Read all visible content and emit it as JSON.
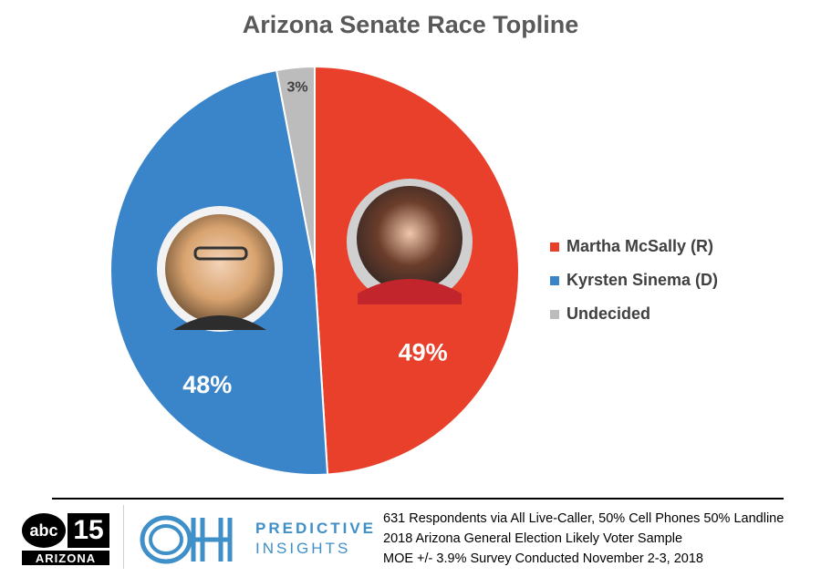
{
  "chart_data": {
    "type": "pie",
    "title": "Arizona Senate Race Topline",
    "slices": [
      {
        "label": "Martha McSally (R)",
        "value": 49,
        "display": "49%",
        "color": "#e8402a"
      },
      {
        "label": "Kyrsten Sinema (D)",
        "value": 48,
        "display": "48%",
        "color": "#3a85c9"
      },
      {
        "label": "Undecided",
        "value": 3,
        "display": "3%",
        "color": "#bcbcbc"
      }
    ],
    "legend_position": "right"
  },
  "footer": {
    "logo_abc": "abc",
    "logo_channel": "15",
    "logo_region": "ARIZONA",
    "brand_name": "PREDICTIVE",
    "brand_sub": "INSIGHTS",
    "notes": [
      "631 Respondents via All Live-Caller, 50% Cell Phones 50% Landline",
      "2018 Arizona General Election Likely Voter Sample",
      "MOE +/- 3.9% Survey Conducted November 2-3, 2018"
    ]
  },
  "colors": {
    "title": "#595959",
    "brand": "#3f8fc8"
  }
}
